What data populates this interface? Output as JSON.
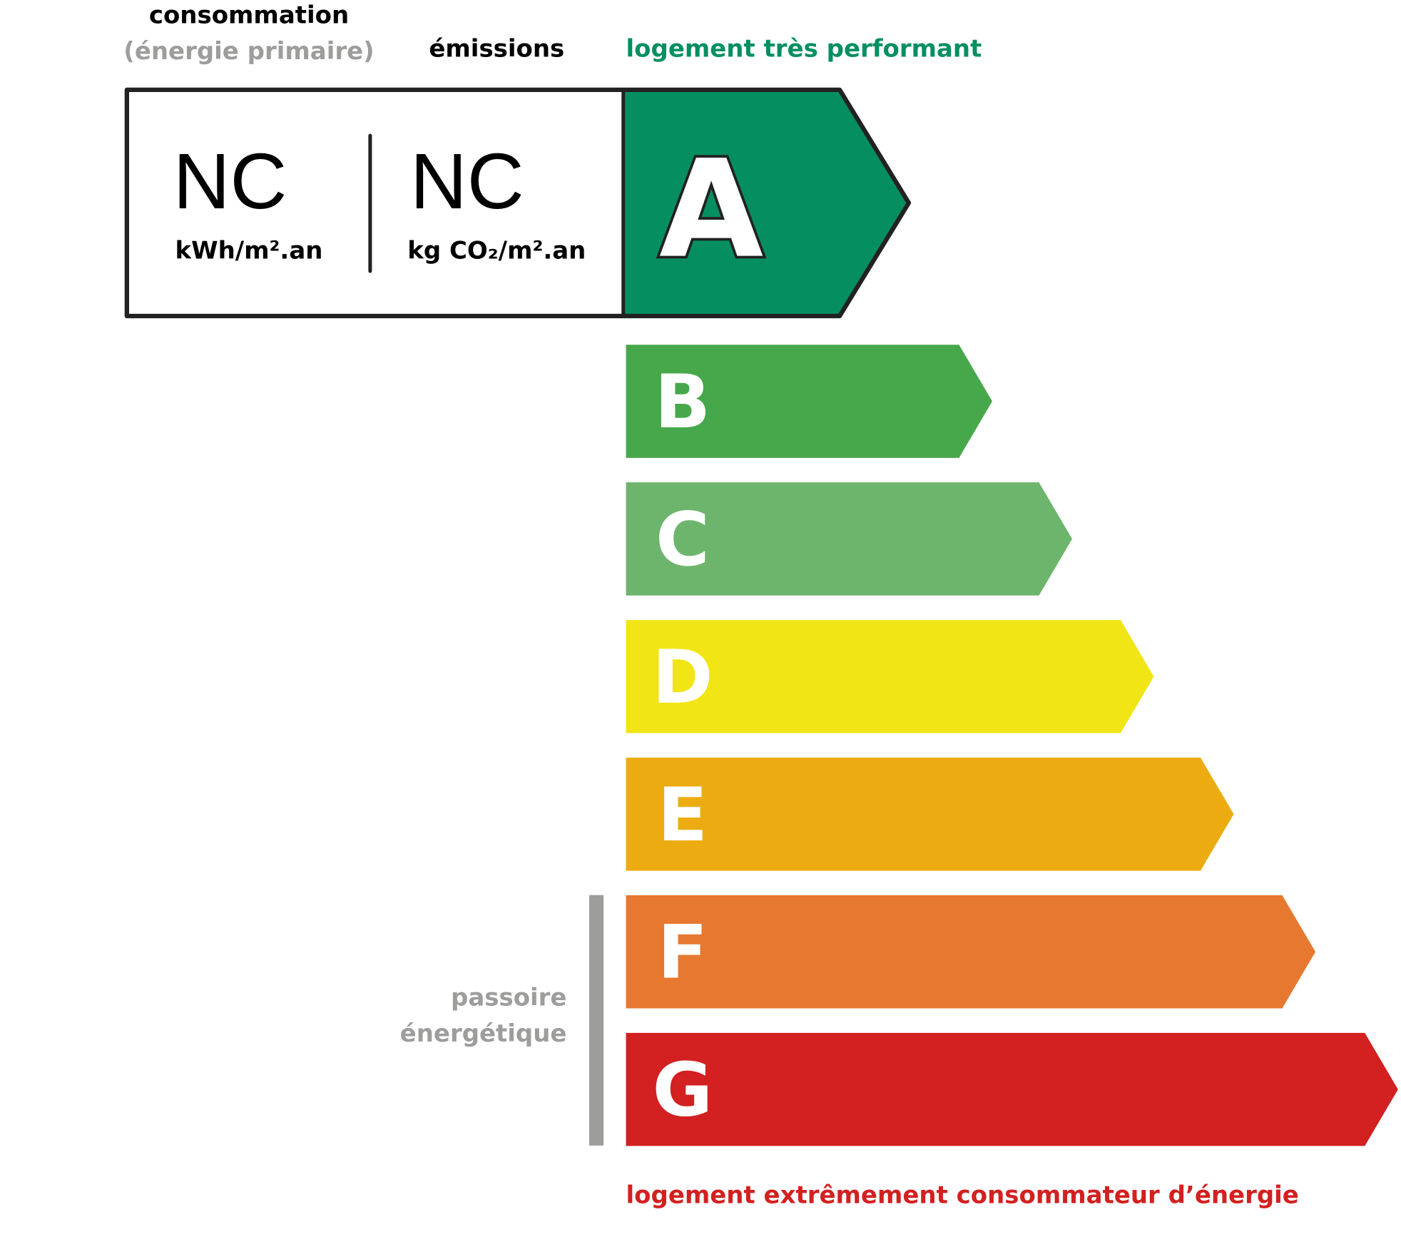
{
  "header": {
    "consumption_label": "consommation",
    "consumption_sub": "(énergie primaire)",
    "emissions_label": "émissions",
    "top_label": "logement très performant"
  },
  "values": {
    "consumption_value": "NC",
    "consumption_unit": "kWh/m².an",
    "emissions_value": "NC",
    "emissions_unit": "kg CO₂/m².an"
  },
  "classes": [
    {
      "letter": "A",
      "color": "#058f61",
      "selected": true
    },
    {
      "letter": "B",
      "color": "#47a84b"
    },
    {
      "letter": "C",
      "color": "#6db56c"
    },
    {
      "letter": "D",
      "color": "#f1e515"
    },
    {
      "letter": "E",
      "color": "#ecac11"
    },
    {
      "letter": "F",
      "color": "#e77830"
    },
    {
      "letter": "G",
      "color": "#d32020"
    }
  ],
  "passoire": {
    "line1": "passoire",
    "line2": "énergétique",
    "color": "#9d9d9c"
  },
  "bottom_label": "logement extrêmement consommateur d’énergie",
  "colors": {
    "top_label": "#058f61",
    "bottom_label": "#d32020",
    "gray": "#9d9d9c"
  }
}
